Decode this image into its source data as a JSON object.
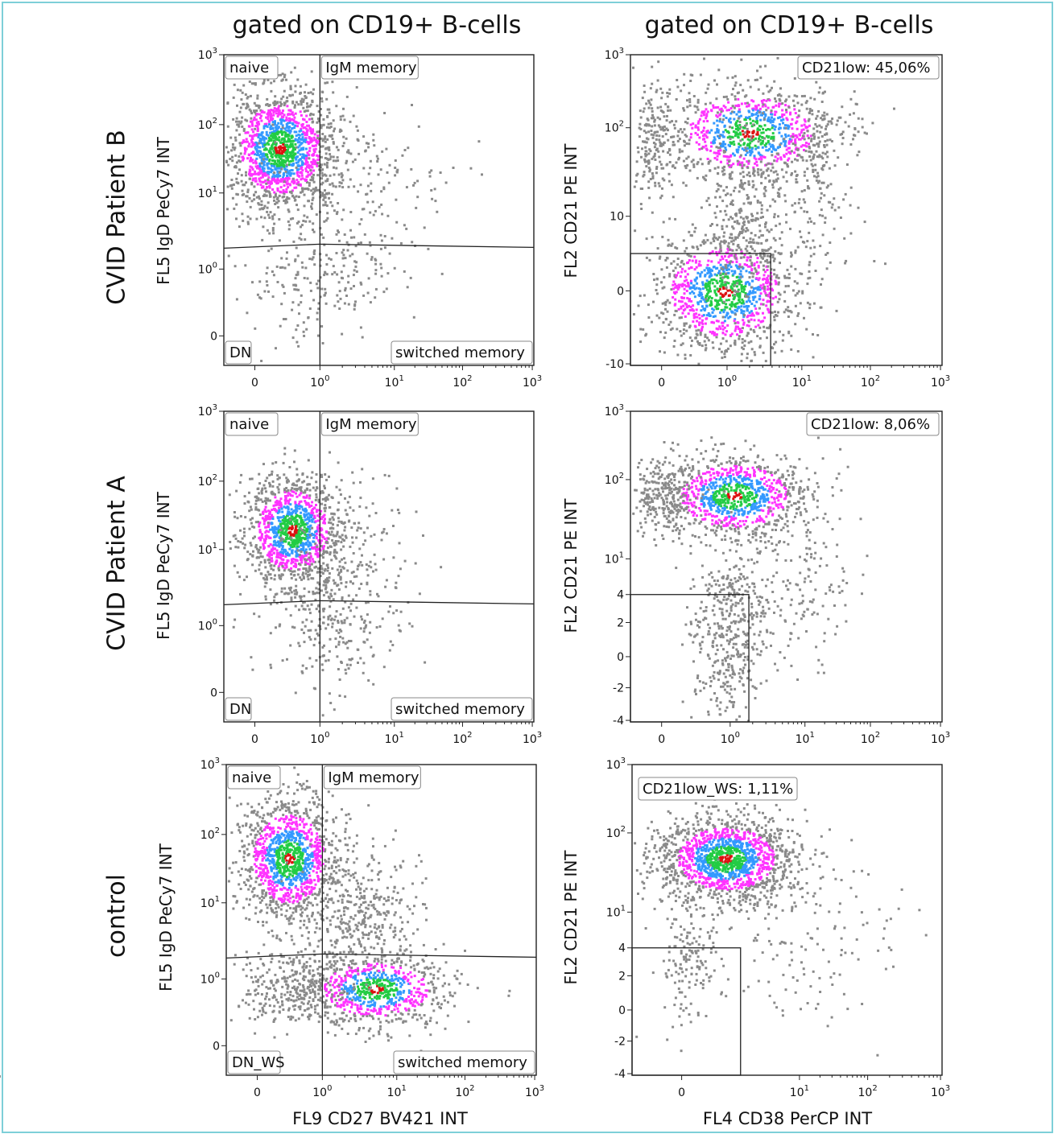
{
  "column_titles": [
    "gated on CD19+ B-cells",
    "gated on CD19+ B-cells"
  ],
  "row_labels": [
    "CVID Patient  B",
    "CVID Patient  A",
    "control"
  ],
  "x_axis_labels": [
    "FL9 CD27 BV421 INT",
    "FL4 CD38 PerCP INT"
  ],
  "colors": {
    "border": "#7ecfd8",
    "dots_low": "#8a8a8a",
    "dots_mid": "#ff33ff",
    "dots_high1": "#3399ff",
    "dots_high2": "#22cc44",
    "dots_peak": "#dd1111"
  },
  "chart_data": [
    {
      "type": "scatter",
      "panel": "CVID Patient B - IgD vs CD27",
      "ylabel": "FL5 IgD PeCy7 INT",
      "x_ticks": [
        "0",
        "10^0",
        "10^1",
        "10^2",
        "10^3"
      ],
      "y_ticks": [
        "0",
        "10^0",
        "10^1",
        "10^2",
        "10^3"
      ],
      "gate_labels": [
        "naive",
        "IgM memory",
        "DN",
        "switched memory"
      ],
      "clusters": [
        {
          "x": "~0.2",
          "y": "~40",
          "description": "naive B-cells (main population)"
        }
      ]
    },
    {
      "type": "scatter",
      "panel": "CVID Patient B - CD21 vs CD38",
      "ylabel": "FL2 CD21 PE INT",
      "x_ticks": [
        "0",
        "10^0",
        "10^1",
        "10^2",
        "10^3"
      ],
      "y_ticks": [
        "-10",
        "0",
        "10",
        "10^2",
        "10^3"
      ],
      "gate_labels": [
        "CD21low: 45,06%"
      ],
      "CD21low_percent": 45.06
    },
    {
      "type": "scatter",
      "panel": "CVID Patient A - IgD vs CD27",
      "ylabel": "FL5 IgD PeCy7 INT",
      "x_ticks": [
        "0",
        "10^0",
        "10^1",
        "10^2",
        "10^3"
      ],
      "y_ticks": [
        "0",
        "10^0",
        "10^1",
        "10^2",
        "10^3"
      ],
      "gate_labels": [
        "naive",
        "IgM memory",
        "DN",
        "switched memory"
      ]
    },
    {
      "type": "scatter",
      "panel": "CVID Patient A - CD21 vs CD38",
      "ylabel": "FL2 CD21 PE INT",
      "x_ticks": [
        "0",
        "10^0",
        "10^1",
        "10^2",
        "10^3"
      ],
      "y_ticks": [
        "-4",
        "-2",
        "0",
        "2",
        "4",
        "10^1",
        "10^2",
        "10^3"
      ],
      "gate_labels": [
        "CD21low: 8,06%"
      ],
      "CD21low_percent": 8.06
    },
    {
      "type": "scatter",
      "panel": "control - IgD vs CD27",
      "ylabel": "FL5 IgD PeCy7 INT",
      "xlabel": "FL9 CD27 BV421 INT",
      "x_ticks": [
        "0",
        "10^0",
        "10^1",
        "10^2",
        "10^3"
      ],
      "y_ticks": [
        "0",
        "10^0",
        "10^1",
        "10^2",
        "10^3"
      ],
      "gate_labels": [
        "naive",
        "IgM memory",
        "DN_WS",
        "switched memory"
      ]
    },
    {
      "type": "scatter",
      "panel": "control - CD21 vs CD38",
      "ylabel": "FL2 CD21 PE INT",
      "xlabel": "FL4 CD38 PerCP INT",
      "x_ticks": [
        "0",
        "10^1",
        "10^2",
        "10^3"
      ],
      "y_ticks": [
        "-4",
        "-2",
        "0",
        "2",
        "4",
        "10^1",
        "10^2",
        "10^3"
      ],
      "gate_labels": [
        "CD21low_WS: 1,11%"
      ],
      "CD21low_percent": 1.11
    }
  ]
}
